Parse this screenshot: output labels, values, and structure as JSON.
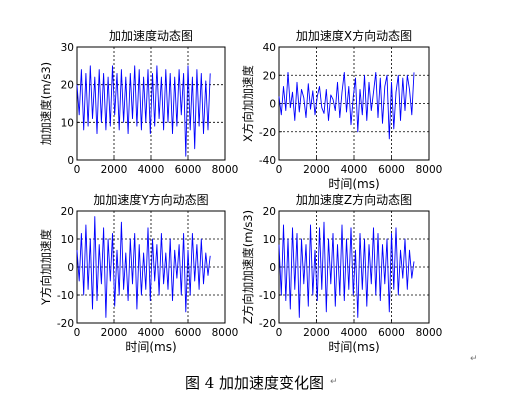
{
  "chart_data": [
    {
      "type": "line",
      "title": "加加速度动态图",
      "xlabel": "",
      "ylabel": "加加速度(m/s3)",
      "xlim": [
        0,
        8000
      ],
      "ylim": [
        0,
        30
      ],
      "xticks": [
        "0",
        "2000",
        "4000",
        "6000",
        "8000"
      ],
      "yticks": [
        "0",
        "10",
        "20",
        "30"
      ],
      "grid": true,
      "color": "#0000ff",
      "series": [
        {
          "x": [
            0,
            120,
            240,
            360,
            480,
            600,
            720,
            840,
            960,
            1080,
            1200,
            1320,
            1440,
            1560,
            1680,
            1800,
            1920,
            2040,
            2160,
            2280,
            2400,
            2520,
            2640,
            2760,
            2880,
            3000,
            3120,
            3240,
            3360,
            3480,
            3600,
            3720,
            3840,
            3960,
            4080,
            4200,
            4320,
            4440,
            4560,
            4680,
            4800,
            4920,
            5040,
            5160,
            5280,
            5400,
            5520,
            5640,
            5760,
            5880,
            6000,
            6120,
            6240,
            6360,
            6480,
            6600,
            6720,
            6840,
            6960,
            7080,
            7200
          ],
          "y": [
            20,
            12,
            24,
            8,
            23,
            9,
            25,
            11,
            22,
            7,
            24,
            10,
            23,
            8,
            22,
            9,
            25,
            12,
            23,
            8,
            24,
            10,
            22,
            7,
            23,
            11,
            25,
            9,
            24,
            8,
            22,
            10,
            24,
            7,
            23,
            9,
            25,
            11,
            22,
            8,
            24,
            10,
            23,
            7,
            22,
            9,
            24,
            12,
            23,
            1,
            25,
            8,
            22,
            3,
            24,
            9,
            23,
            7,
            21,
            8,
            23
          ]
        }
      ]
    },
    {
      "type": "line",
      "title": "加加速度X方向动态图",
      "xlabel": "时间(ms)",
      "ylabel": "X方向加加速度",
      "xlim": [
        0,
        8000
      ],
      "ylim": [
        -40,
        40
      ],
      "xticks": [
        "0",
        "2000",
        "4000",
        "6000",
        "8000"
      ],
      "yticks": [
        "-40",
        "-20",
        "0",
        "20",
        "40"
      ],
      "grid": true,
      "color": "#0000ff",
      "series": [
        {
          "x": [
            0,
            120,
            240,
            360,
            480,
            600,
            720,
            840,
            960,
            1080,
            1200,
            1320,
            1440,
            1560,
            1680,
            1800,
            1920,
            2040,
            2160,
            2280,
            2400,
            2520,
            2640,
            2760,
            2880,
            3000,
            3120,
            3240,
            3360,
            3480,
            3600,
            3720,
            3840,
            3960,
            4080,
            4200,
            4320,
            4440,
            4560,
            4680,
            4800,
            4920,
            5040,
            5160,
            5280,
            5400,
            5520,
            5640,
            5760,
            5880,
            6000,
            6120,
            6240,
            6360,
            6480,
            6600,
            6720,
            6840,
            6960,
            7080,
            7200
          ],
          "y": [
            5,
            -8,
            12,
            -5,
            22,
            -3,
            8,
            -12,
            15,
            -6,
            10,
            4,
            -10,
            14,
            -4,
            9,
            -8,
            5,
            12,
            -3,
            -7,
            10,
            -12,
            6,
            3,
            -5,
            15,
            -10,
            8,
            22,
            -6,
            12,
            -15,
            5,
            18,
            -20,
            10,
            -8,
            20,
            -12,
            15,
            -5,
            8,
            22,
            -10,
            18,
            -14,
            12,
            20,
            -25,
            15,
            -18,
            8,
            20,
            -12,
            18,
            -5,
            20,
            10,
            -8,
            22
          ]
        }
      ]
    },
    {
      "type": "line",
      "title": "加加速度Y方向动态图",
      "xlabel": "时间(ms)",
      "ylabel": "Y方向加加速度",
      "xlim": [
        0,
        8000
      ],
      "ylim": [
        -20,
        20
      ],
      "xticks": [
        "0",
        "2000",
        "4000",
        "6000",
        "8000"
      ],
      "yticks": [
        "-20",
        "-10",
        "0",
        "10",
        "20"
      ],
      "grid": true,
      "color": "#0000ff",
      "series": [
        {
          "x": [
            0,
            120,
            240,
            360,
            480,
            600,
            720,
            840,
            960,
            1080,
            1200,
            1320,
            1440,
            1560,
            1680,
            1800,
            1920,
            2040,
            2160,
            2280,
            2400,
            2520,
            2640,
            2760,
            2880,
            3000,
            3120,
            3240,
            3360,
            3480,
            3600,
            3720,
            3840,
            3960,
            4080,
            4200,
            4320,
            4440,
            4560,
            4680,
            4800,
            4920,
            5040,
            5160,
            5280,
            5400,
            5520,
            5640,
            5760,
            5880,
            6000,
            6120,
            6240,
            6360,
            6480,
            6600,
            6720,
            6840,
            6960,
            7080,
            7200
          ],
          "y": [
            6,
            -5,
            12,
            -10,
            15,
            -8,
            10,
            -15,
            18,
            -12,
            8,
            -6,
            14,
            -18,
            10,
            -5,
            12,
            -14,
            6,
            -10,
            16,
            -8,
            5,
            -12,
            10,
            -6,
            12,
            -15,
            8,
            -10,
            5,
            -8,
            14,
            -12,
            10,
            -5,
            8,
            -10,
            12,
            -6,
            5,
            -8,
            10,
            -12,
            6,
            -4,
            8,
            -10,
            12,
            -16,
            6,
            -10,
            12,
            -5,
            8,
            -8,
            10,
            -6,
            5,
            -3,
            4
          ]
        }
      ]
    },
    {
      "type": "line",
      "title": "加加速度Z方向动态图",
      "xlabel": "时间(ms)",
      "ylabel": "Z方向加加速度(m/s3)",
      "xlim": [
        0,
        8000
      ],
      "ylim": [
        -20,
        20
      ],
      "xticks": [
        "0",
        "2000",
        "4000",
        "6000",
        "8000"
      ],
      "yticks": [
        "-20",
        "-10",
        "0",
        "10",
        "20"
      ],
      "grid": true,
      "color": "#0000ff",
      "series": [
        {
          "x": [
            0,
            120,
            240,
            360,
            480,
            600,
            720,
            840,
            960,
            1080,
            1200,
            1320,
            1440,
            1560,
            1680,
            1800,
            1920,
            2040,
            2160,
            2280,
            2400,
            2520,
            2640,
            2760,
            2880,
            3000,
            3120,
            3240,
            3360,
            3480,
            3600,
            3720,
            3840,
            3960,
            4080,
            4200,
            4320,
            4440,
            4560,
            4680,
            4800,
            4920,
            5040,
            5160,
            5280,
            5400,
            5520,
            5640,
            5760,
            5880,
            6000,
            6120,
            6240,
            6360,
            6480,
            6600,
            6720,
            6840,
            6960,
            7080,
            7200
          ],
          "y": [
            8,
            -10,
            15,
            -12,
            10,
            -15,
            14,
            -8,
            12,
            -18,
            10,
            -6,
            8,
            -14,
            15,
            -10,
            6,
            -12,
            14,
            -8,
            16,
            -16,
            10,
            -6,
            12,
            -14,
            8,
            -10,
            15,
            -12,
            10,
            -8,
            14,
            -10,
            6,
            -18,
            12,
            -8,
            10,
            -14,
            8,
            -6,
            14,
            -10,
            12,
            -12,
            8,
            -6,
            10,
            -16,
            12,
            -8,
            14,
            -10,
            6,
            -4,
            10,
            -8,
            6,
            -4,
            2
          ]
        }
      ]
    }
  ],
  "caption": "图 4  加加速度变化图",
  "para_marks": [
    "↵",
    "↵"
  ]
}
